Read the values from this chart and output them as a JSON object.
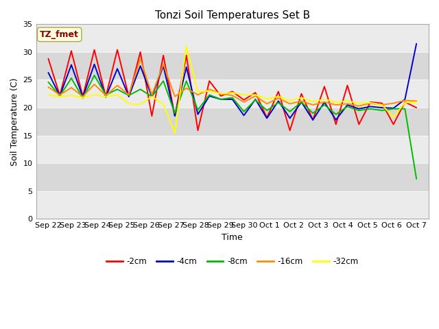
{
  "title": "Tonzi Soil Temperatures Set B",
  "xlabel": "Time",
  "ylabel": "Soil Temperature (C)",
  "ylim": [
    0,
    35
  ],
  "yticks": [
    0,
    5,
    10,
    15,
    20,
    25,
    30,
    35
  ],
  "annotation": "TZ_fmet",
  "annotation_color": "#8B0000",
  "annotation_bg": "#FFFFE0",
  "annotation_edge": "#AAAA44",
  "bg_light": "#EBEBEB",
  "bg_dark": "#D8D8D8",
  "colors": {
    "-2cm": "#FF0000",
    "-4cm": "#0000CC",
    "-8cm": "#00BB00",
    "-16cm": "#FF8C00",
    "-32cm": "#FFFF00"
  },
  "x_labels": [
    "Sep 22",
    "Sep 23",
    "Sep 24",
    "Sep 25",
    "Sep 26",
    "Sep 27",
    "Sep 28",
    "Sep 29",
    "Sep 30",
    "Oct 1",
    "Oct 2",
    "Oct 3",
    "Oct 4",
    "Oct 5",
    "Oct 6",
    "Oct 7"
  ],
  "series": {
    "-2cm": [
      28.8,
      22.2,
      30.2,
      22.0,
      30.4,
      22.0,
      30.4,
      22.0,
      30.0,
      18.5,
      29.4,
      18.5,
      29.4,
      15.9,
      24.8,
      22.1,
      22.9,
      21.4,
      22.7,
      18.2,
      22.9,
      15.9,
      22.5,
      17.8,
      23.8,
      17.0,
      24.0,
      17.0,
      21.0,
      20.8,
      17.0,
      21.0,
      20.0
    ],
    "-4cm": [
      26.3,
      22.1,
      27.7,
      21.9,
      27.8,
      21.9,
      27.0,
      22.0,
      27.5,
      22.0,
      27.5,
      18.5,
      27.3,
      18.8,
      22.1,
      21.5,
      21.5,
      18.6,
      21.5,
      18.1,
      21.2,
      18.1,
      21.0,
      17.8,
      21.0,
      17.8,
      20.5,
      19.8,
      20.2,
      20.0,
      19.9,
      21.5,
      31.5
    ],
    "-8cm": [
      24.6,
      22.1,
      25.3,
      21.7,
      25.8,
      22.3,
      23.3,
      22.2,
      23.3,
      22.0,
      24.8,
      19.0,
      24.8,
      19.6,
      22.3,
      21.5,
      21.8,
      19.3,
      21.4,
      19.5,
      20.9,
      19.3,
      21.0,
      19.0,
      20.5,
      18.8,
      20.2,
      19.5,
      19.8,
      19.5,
      19.8,
      19.8,
      7.2
    ],
    "-16cm": [
      23.7,
      22.3,
      23.6,
      22.0,
      24.2,
      22.2,
      24.0,
      22.3,
      28.8,
      22.3,
      27.8,
      22.0,
      23.5,
      22.3,
      23.3,
      22.5,
      22.2,
      21.0,
      22.1,
      20.7,
      21.7,
      20.7,
      21.2,
      20.5,
      21.0,
      20.5,
      20.7,
      20.3,
      20.8,
      20.5,
      20.8,
      21.3,
      21.2
    ],
    "-32cm": [
      22.3,
      22.0,
      22.2,
      21.8,
      22.3,
      22.0,
      22.3,
      20.7,
      20.6,
      22.0,
      20.6,
      15.5,
      31.1,
      22.8,
      23.0,
      22.5,
      22.7,
      22.3,
      22.3,
      21.6,
      22.0,
      21.3,
      21.8,
      21.1,
      21.5,
      21.0,
      21.2,
      20.8,
      20.9,
      20.5,
      18.3,
      20.9,
      21.0
    ]
  }
}
